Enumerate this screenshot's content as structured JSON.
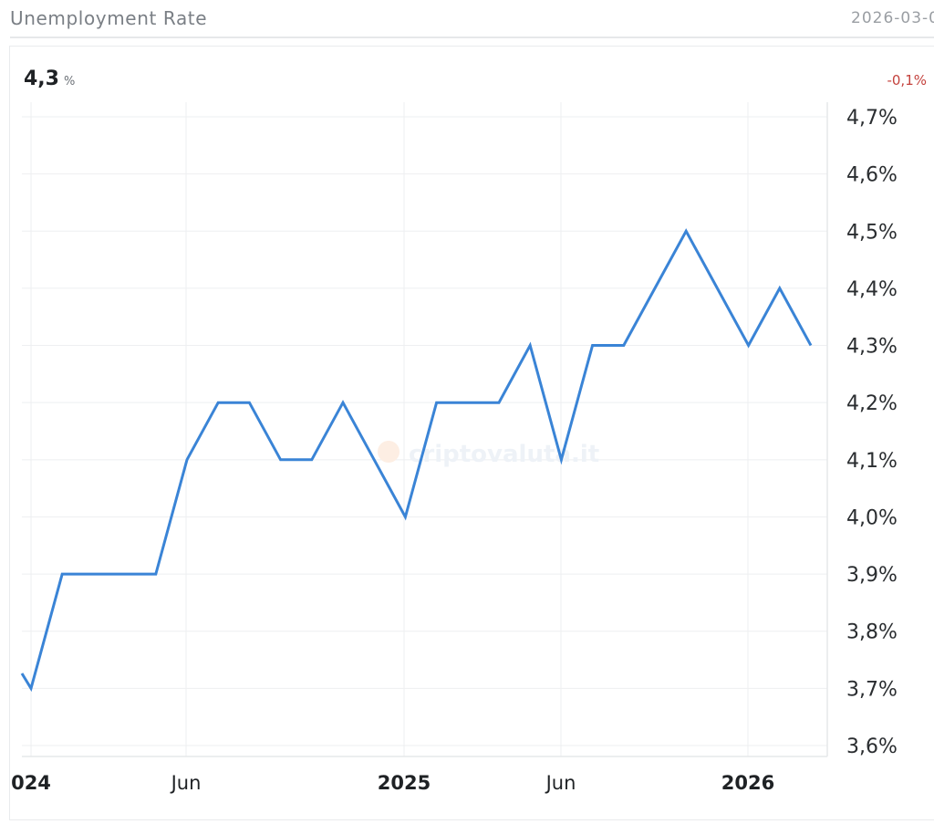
{
  "header": {
    "title": "Unemployment Rate",
    "date": "2026-03-0"
  },
  "summary": {
    "value": "4,3",
    "unit": "%",
    "change": "-0,1%",
    "change_color": "#c4423d"
  },
  "watermark": "criptovaluta.it",
  "colors": {
    "line": "#3a84d6",
    "grid": "#eeeff1"
  },
  "chart_data": {
    "type": "line",
    "title": "Unemployment Rate",
    "xlabel": "",
    "ylabel": "",
    "ylim": [
      3.6,
      4.7
    ],
    "grid": true,
    "legend": "none",
    "y_axis_position": "right",
    "y_ticks": [
      "4,7%",
      "4,6%",
      "4,5%",
      "4,4%",
      "4,3%",
      "4,2%",
      "4,1%",
      "4,0%",
      "3,9%",
      "3,8%",
      "3,7%",
      "3,6%"
    ],
    "x_ticks": [
      {
        "label": "2024",
        "display": "024",
        "bold": true
      },
      {
        "label": "Jun",
        "bold": false
      },
      {
        "label": "2025",
        "bold": true
      },
      {
        "label": "Jun",
        "bold": false
      },
      {
        "label": "2026",
        "bold": true
      }
    ],
    "series": [
      {
        "name": "Unemployment Rate",
        "x": [
          "2023-12",
          "2024-01",
          "2024-02",
          "2024-03",
          "2024-04",
          "2024-05",
          "2024-06",
          "2024-07",
          "2024-08",
          "2024-09",
          "2024-10",
          "2024-11",
          "2024-12",
          "2025-01",
          "2025-02",
          "2025-03",
          "2025-04",
          "2025-05",
          "2025-06",
          "2025-07",
          "2025-08",
          "2025-09",
          "2025-10",
          "2025-11",
          "2025-12",
          "2026-01",
          "2026-02"
        ],
        "values": [
          3.7,
          3.7,
          3.9,
          3.9,
          3.9,
          3.9,
          4.1,
          4.2,
          4.2,
          4.1,
          4.1,
          4.2,
          4.1,
          4.0,
          4.2,
          4.2,
          4.2,
          4.3,
          4.1,
          4.3,
          4.3,
          4.4,
          4.5,
          4.4,
          4.3,
          4.4,
          4.3
        ]
      }
    ]
  }
}
